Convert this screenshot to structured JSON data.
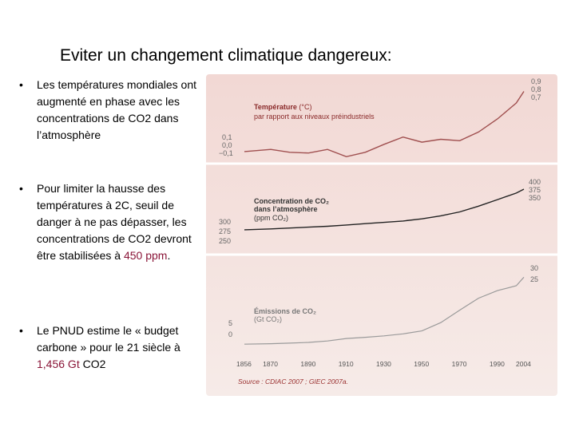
{
  "slide": {
    "title": "Eviter un changement climatique dangereux:",
    "bullets": [
      {
        "text": "Les températures mondiales ont augmenté en phase avec les concentrations de CO2 dans l’atmosphère"
      },
      {
        "pre": "Pour limiter la hausse des températures à 2C, seuil de danger à ne pas dépasser, les concentrations de CO2 devront être stabilisées à ",
        "highlight": "450 ppm",
        "post": "."
      },
      {
        "pre": "Le PNUD estime le « budget carbone » pour le 21 siècle à ",
        "highlight": "1,456 Gt",
        "post": " CO2"
      }
    ],
    "bullet_symbol": "•"
  },
  "colors": {
    "panel_top": "#f2d8d4",
    "panel_bottom": "#f6ebe8",
    "line": "#a05050",
    "highlight": "#8a1538"
  },
  "chart_data": [
    {
      "type": "line",
      "title": "Température",
      "title_unit": "(°C)",
      "subtitle": "par rapport aux niveaux préindustriels",
      "left_ticks": [
        "0,1",
        "0,0",
        "−0,1"
      ],
      "right_ticks": [
        "0,9",
        "0,8",
        "0,7"
      ],
      "x": [
        1856,
        1870,
        1880,
        1890,
        1900,
        1910,
        1920,
        1930,
        1940,
        1950,
        1960,
        1970,
        1980,
        1990,
        2000,
        2004
      ],
      "y": [
        -0.05,
        -0.02,
        -0.06,
        -0.07,
        -0.02,
        -0.12,
        -0.06,
        0.05,
        0.15,
        0.08,
        0.12,
        0.1,
        0.22,
        0.4,
        0.62,
        0.78
      ],
      "ylim": [
        -0.15,
        0.95
      ]
    },
    {
      "type": "line",
      "title": "Concentration de CO₂",
      "subtitle": "dans l’atmosphère",
      "unit": "(ppm CO₂)",
      "left_ticks": [
        "300",
        "275",
        "250"
      ],
      "right_ticks": [
        "400",
        "375",
        "350"
      ],
      "x": [
        1856,
        1870,
        1880,
        1890,
        1900,
        1910,
        1920,
        1930,
        1940,
        1950,
        1960,
        1970,
        1980,
        1990,
        2000,
        2004
      ],
      "y": [
        285,
        287,
        289,
        291,
        293,
        296,
        299,
        302,
        305,
        310,
        317,
        326,
        339,
        354,
        369,
        378
      ],
      "ylim": [
        250,
        400
      ]
    },
    {
      "type": "line",
      "title": "Émissions de CO₂",
      "unit": "(Gt CO₂)",
      "left_ticks": [
        "5",
        "0"
      ],
      "right_ticks": [
        "30",
        "25"
      ],
      "x": [
        1856,
        1870,
        1880,
        1890,
        1900,
        1910,
        1920,
        1930,
        1940,
        1950,
        1960,
        1970,
        1980,
        1990,
        2000,
        2004
      ],
      "y": [
        0.6,
        0.8,
        1.0,
        1.3,
        1.9,
        2.9,
        3.4,
        4.0,
        4.8,
        6.0,
        9.4,
        14.5,
        19.4,
        22.5,
        24.5,
        28.0
      ],
      "ylim": [
        0,
        32
      ]
    }
  ],
  "x_axis": {
    "tick_labels": [
      "1856",
      "1870",
      "1890",
      "1910",
      "1930",
      "1950",
      "1970",
      "1990",
      "2004"
    ]
  },
  "source": "Source : CDIAC 2007 ; GIEC 2007a."
}
